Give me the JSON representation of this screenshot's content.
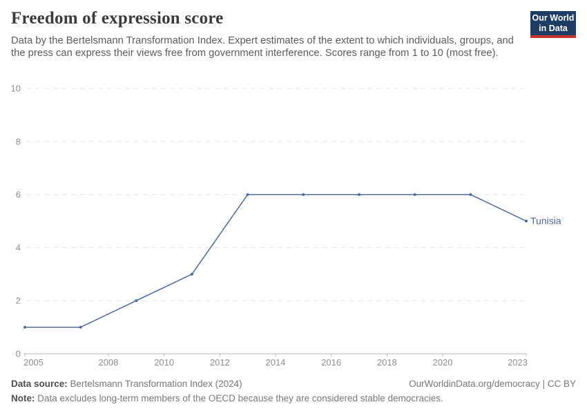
{
  "header": {
    "title": "Freedom of expression score",
    "subtitle": "Data by the Bertelsmann Transformation Index. Expert estimates of the extent to which individuals, groups, and the press can express their views free from government interference. Scores range from 1 to 10 (most free).",
    "logo": {
      "line1": "Our World",
      "line2": "in Data",
      "bg_color": "#1d3d63",
      "accent_color": "#c7362f"
    }
  },
  "chart_data": {
    "type": "line",
    "title": "Freedom of expression score",
    "xlabel": "",
    "ylabel": "",
    "xlim": [
      2005,
      2023
    ],
    "ylim": [
      0,
      10
    ],
    "grid": "horizontal-dashed",
    "legend_position": "end-of-line-label",
    "x_ticks": [
      2005,
      2008,
      2010,
      2012,
      2014,
      2016,
      2018,
      2020,
      2023
    ],
    "y_ticks": [
      0,
      2,
      4,
      6,
      8,
      10
    ],
    "series": [
      {
        "name": "Tunisia",
        "color": "#4c6a9c",
        "x": [
          2005,
          2007,
          2009,
          2011,
          2013,
          2015,
          2017,
          2019,
          2021,
          2023
        ],
        "values": [
          1,
          1,
          2,
          3,
          6,
          6,
          6,
          6,
          6,
          5
        ]
      }
    ],
    "colors": {
      "gridline": "#e3e3e3",
      "axis": "#b8b8b8",
      "tick_label": "#8f8f8f"
    }
  },
  "footer": {
    "source_label": "Data source:",
    "source_value": " Bertelsmann Transformation Index (2024)",
    "rights": "OurWorldinData.org/democracy | CC BY",
    "note_label": "Note:",
    "note_value": " Data excludes long-term members of the OECD because they are considered stable democracies."
  }
}
